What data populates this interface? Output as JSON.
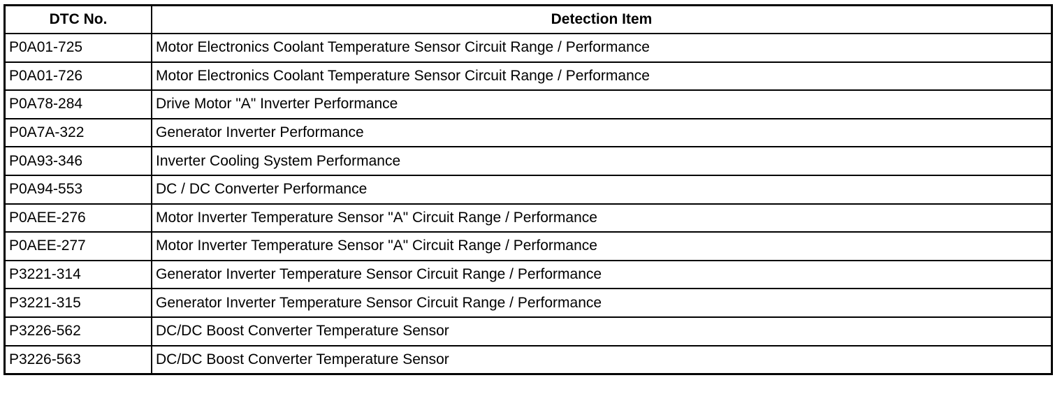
{
  "table": {
    "header": [
      "DTC No.",
      "Detection Item"
    ],
    "rows": [
      [
        "P0A01-725",
        "Motor Electronics Coolant Temperature Sensor Circuit Range / Performance"
      ],
      [
        "P0A01-726",
        "Motor Electronics Coolant Temperature Sensor Circuit Range / Performance"
      ],
      [
        "P0A78-284",
        "Drive Motor \"A\" Inverter Performance"
      ],
      [
        "P0A7A-322",
        "Generator Inverter Performance"
      ],
      [
        "P0A93-346",
        "Inverter Cooling System Performance"
      ],
      [
        "P0A94-553",
        "DC / DC Converter Performance"
      ],
      [
        "P0AEE-276",
        "Motor Inverter Temperature Sensor \"A\" Circuit Range / Performance"
      ],
      [
        "P0AEE-277",
        "Motor Inverter Temperature Sensor \"A\" Circuit Range / Performance"
      ],
      [
        "P3221-314",
        "Generator Inverter Temperature Sensor Circuit Range / Performance"
      ],
      [
        "P3221-315",
        "Generator Inverter Temperature Sensor Circuit Range / Performance"
      ],
      [
        "P3226-562",
        "DC/DC Boost Converter Temperature Sensor"
      ],
      [
        "P3226-563",
        "DC/DC Boost Converter Temperature Sensor"
      ]
    ]
  }
}
